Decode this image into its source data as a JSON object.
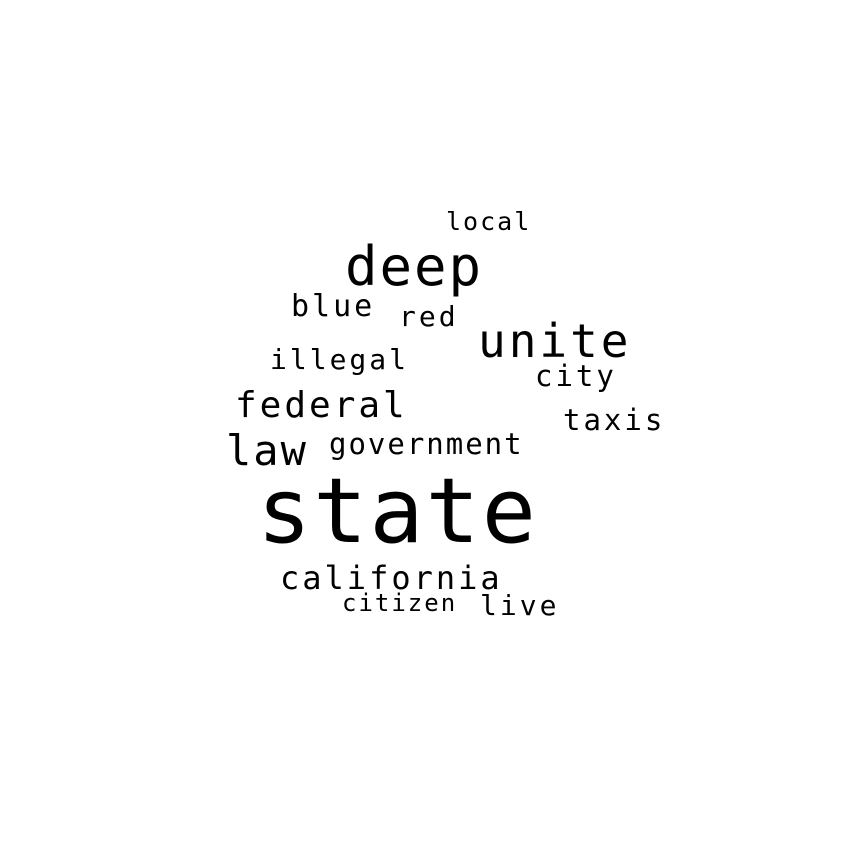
{
  "word_cloud": {
    "background": "#ffffff",
    "text_color": "#000000",
    "words": {
      "state": "state",
      "deep": "deep",
      "unite": "unite",
      "federal": "federal",
      "law": "law",
      "government": "government",
      "california": "california",
      "citizen": "citizen",
      "live": "live",
      "blue": "blue",
      "red": "red",
      "illegal": "illegal",
      "city": "city",
      "taxis": "taxis",
      "local": "local"
    }
  }
}
